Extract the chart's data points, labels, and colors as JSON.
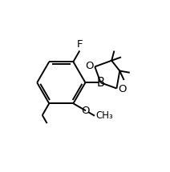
{
  "background": "#ffffff",
  "line_color": "#000000",
  "line_width": 1.4,
  "font_size": 8.5,
  "figsize": [
    2.12,
    2.15
  ],
  "dpi": 100,
  "xlim": [
    0,
    10
  ],
  "ylim": [
    0,
    10
  ]
}
